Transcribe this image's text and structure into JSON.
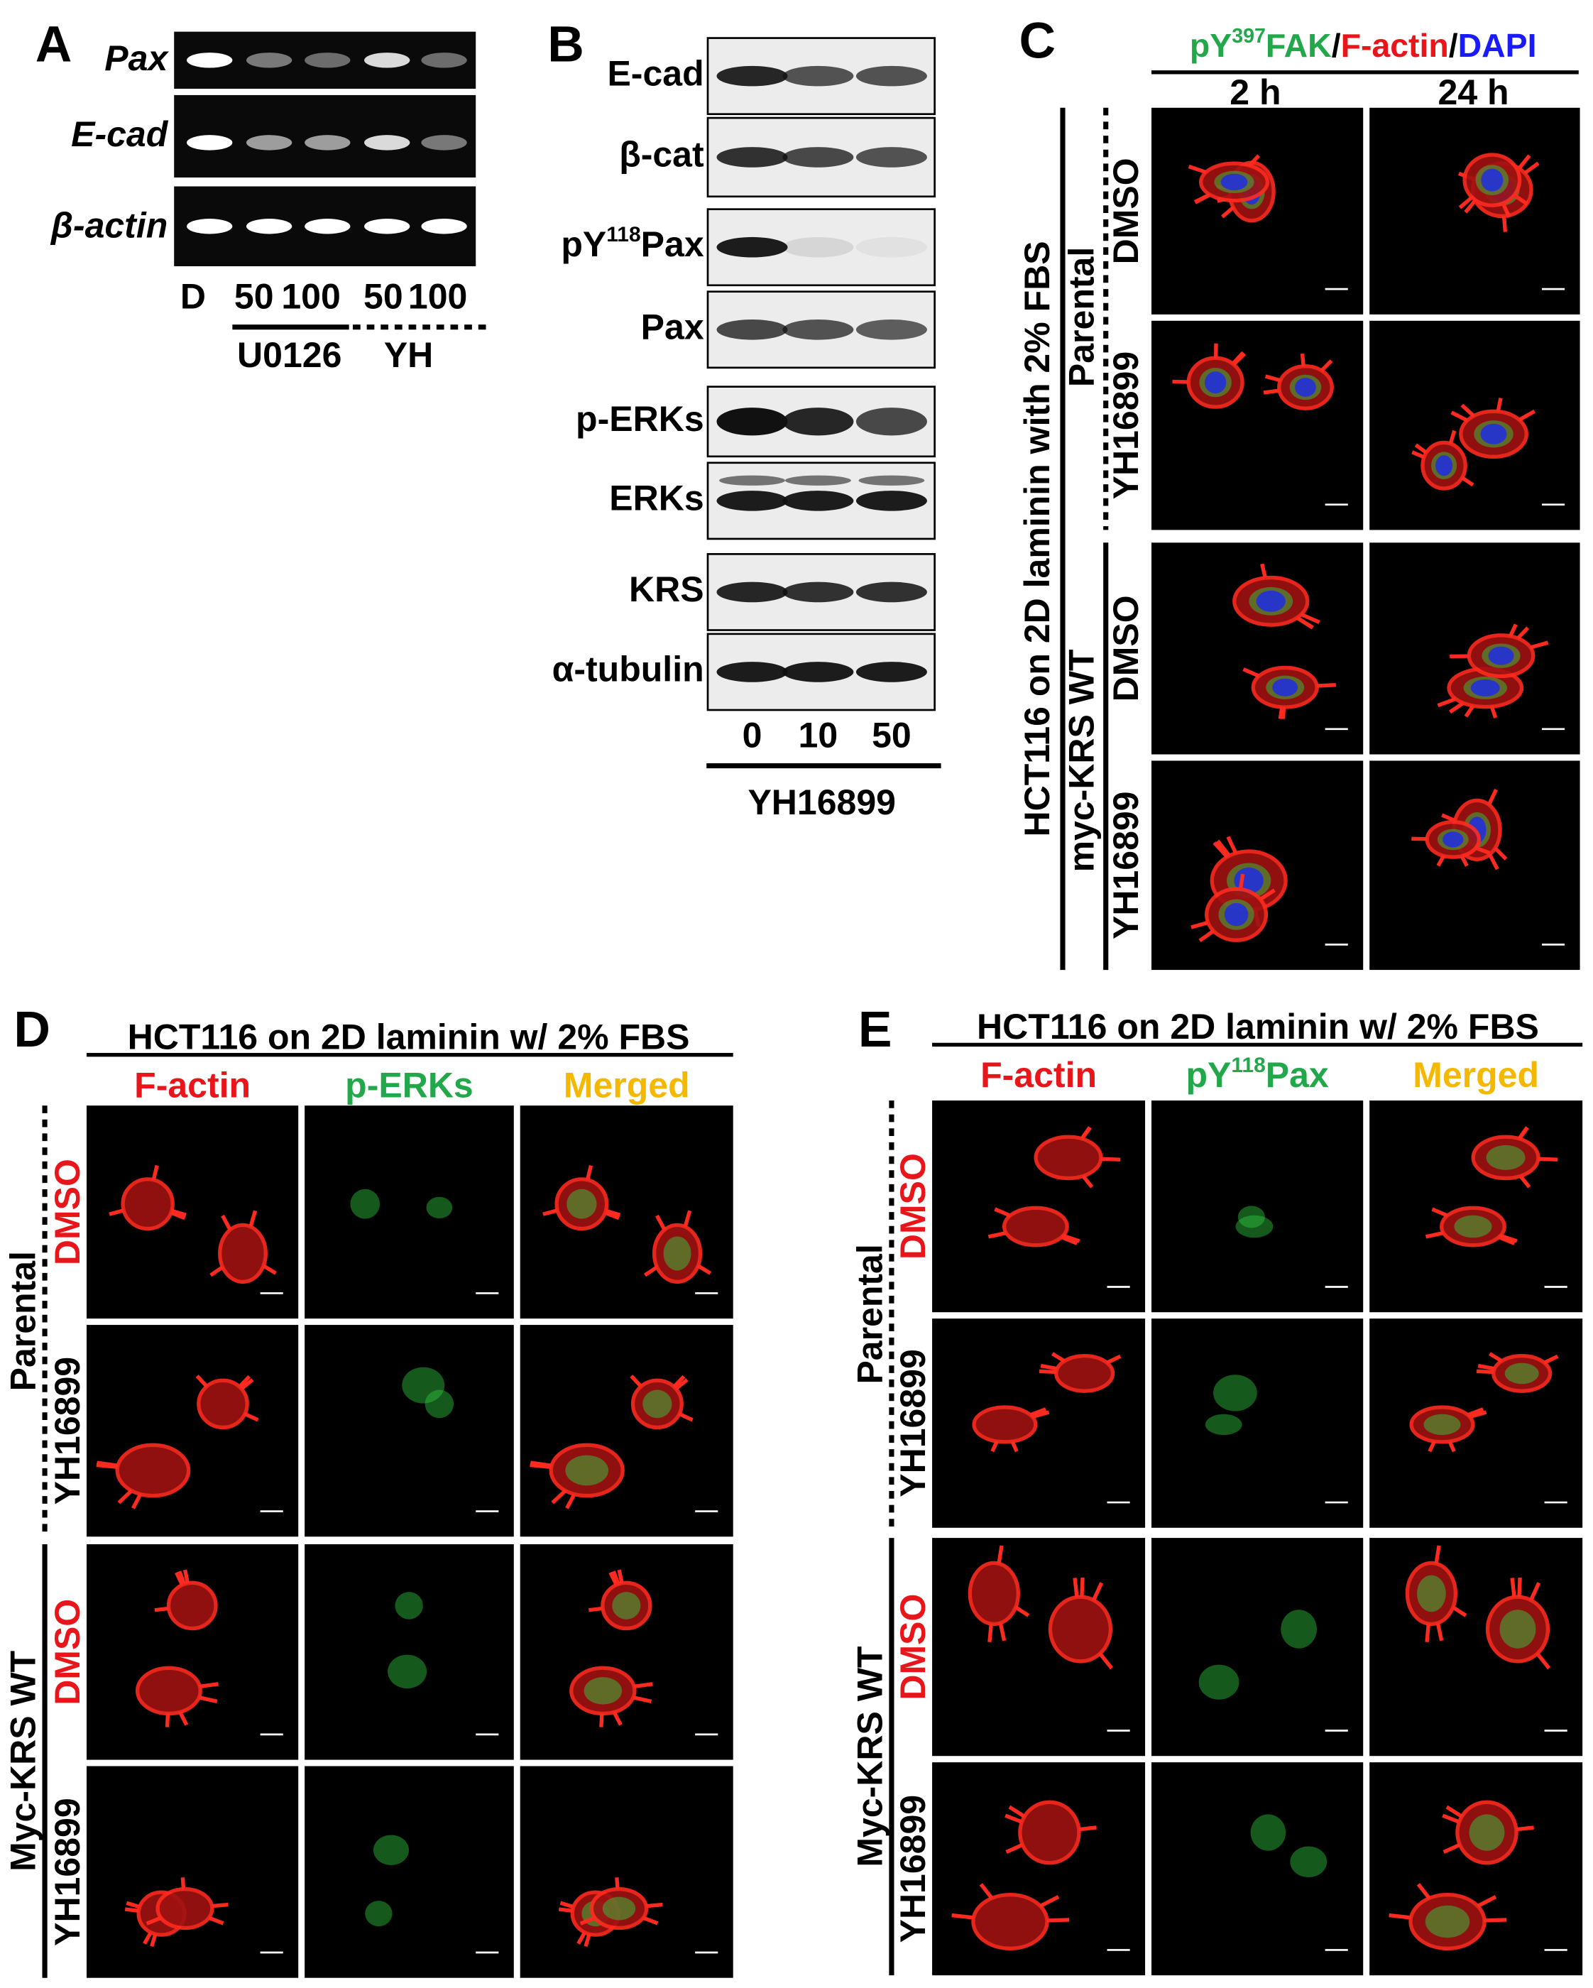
{
  "panel_a": {
    "letter": "A",
    "genes": [
      "Pax",
      "E-cad",
      "β-actin"
    ],
    "lanes": [
      "D",
      "50",
      "100",
      "50",
      "100"
    ],
    "groups": [
      "U0126",
      "YH"
    ]
  },
  "panel_b": {
    "letter": "B",
    "proteins": [
      "E-cad",
      "β-cat",
      {
        "prefix": "pY",
        "superscript": "118",
        "suffix": "Pax"
      },
      "Pax",
      "p-ERKs",
      "ERKs",
      "KRS",
      "α-tubulin"
    ],
    "lanes": [
      "0",
      "10",
      "50"
    ],
    "treatment": "YH16899"
  },
  "panel_c": {
    "letter": "C",
    "stain_title": {
      "p1": "pY",
      "sup": "397",
      "p2": "FAK",
      "sep1": "/",
      "p3": "F-actin",
      "sep2": "/",
      "p4": "DAPI"
    },
    "times": [
      "2 h",
      "24 h"
    ],
    "condition": "HCT116 on 2D laminin with 2% FBS",
    "cell_lines": [
      "Parental",
      "myc-KRS WT"
    ],
    "treatments": [
      "DMSO",
      "YH16899",
      "DMSO",
      "YH16899"
    ]
  },
  "panel_d": {
    "letter": "D",
    "title": "HCT116 on 2D laminin w/ 2% FBS",
    "channels": [
      "F-actin",
      "p-ERKs",
      "Merged"
    ],
    "cell_lines": [
      "Parental",
      "Myc-KRS WT"
    ],
    "treatments": [
      "DMSO",
      "YH16899",
      "DMSO",
      "YH16899"
    ]
  },
  "panel_e": {
    "letter": "E",
    "title": "HCT116 on 2D laminin w/ 2% FBS",
    "channels": [
      "F-actin",
      {
        "prefix": "pY",
        "superscript": "118",
        "suffix": "Pax"
      },
      "Merged"
    ],
    "cell_lines": [
      "Parental",
      "Myc-KRS WT"
    ],
    "treatments": [
      "DMSO",
      "YH16899",
      "DMSO",
      "YH16899"
    ]
  }
}
